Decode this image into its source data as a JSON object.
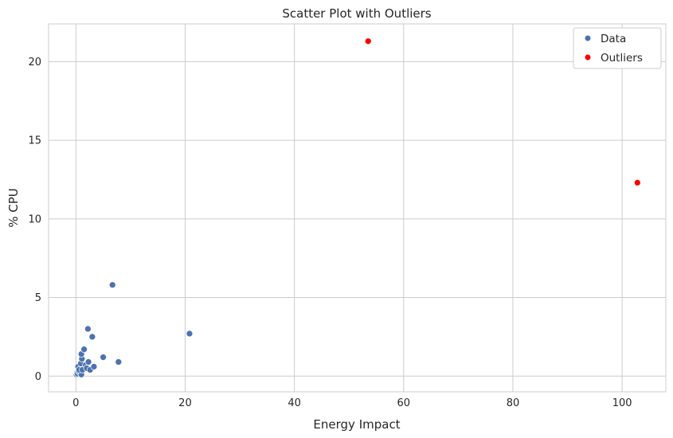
{
  "chart_data": {
    "type": "scatter",
    "title": "Scatter Plot with Outliers",
    "xlabel": "Energy Impact",
    "ylabel": "% CPU",
    "xlim": [
      -5,
      108
    ],
    "ylim": [
      -1,
      22.4
    ],
    "xticks": [
      0,
      20,
      40,
      60,
      80,
      100
    ],
    "yticks": [
      0,
      5,
      10,
      15,
      20
    ],
    "grid": true,
    "legend_position": "top-right",
    "series": [
      {
        "name": "Data",
        "color": "#4c72b0",
        "points": [
          [
            0.1,
            0.1
          ],
          [
            0.2,
            0.2
          ],
          [
            0.3,
            0.15
          ],
          [
            0.5,
            0.3
          ],
          [
            0.7,
            0.5
          ],
          [
            0.4,
            0.6
          ],
          [
            0.8,
            0.2
          ],
          [
            1.0,
            0.1
          ],
          [
            0.6,
            0.4
          ],
          [
            1.2,
            0.4
          ],
          [
            0.9,
            0.8
          ],
          [
            1.1,
            1.1
          ],
          [
            1.0,
            1.4
          ],
          [
            1.5,
            1.7
          ],
          [
            1.8,
            0.7
          ],
          [
            2.0,
            0.5
          ],
          [
            2.3,
            0.9
          ],
          [
            2.6,
            0.4
          ],
          [
            2.2,
            3.0
          ],
          [
            3.0,
            2.5
          ],
          [
            3.3,
            0.6
          ],
          [
            5.0,
            1.2
          ],
          [
            6.7,
            5.8
          ],
          [
            7.8,
            0.9
          ],
          [
            20.8,
            2.7
          ]
        ]
      },
      {
        "name": "Outliers",
        "color": "#ff0000",
        "points": [
          [
            53.5,
            21.3
          ],
          [
            102.8,
            12.3
          ]
        ]
      }
    ]
  }
}
